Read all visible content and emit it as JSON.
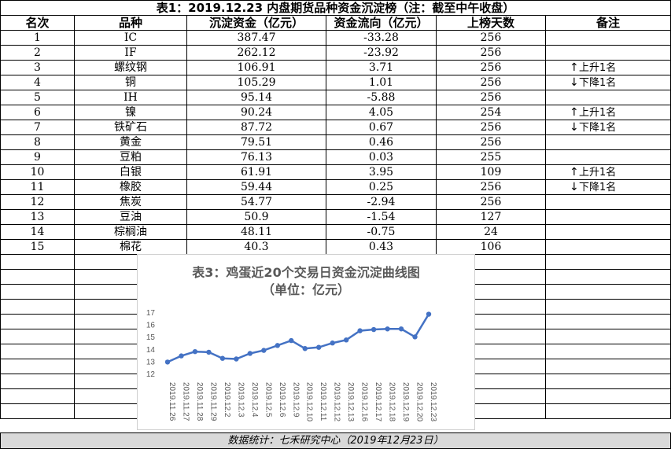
{
  "title": "表1：2019.12.23 内盘期货品种资金沉淀榜（注：截至中午收盘）",
  "headers": [
    "名次",
    "品种",
    "沉淀资金（亿元）",
    "资金流向（亿元）",
    "上榜天数",
    "备注"
  ],
  "rows": [
    {
      "rank": "1",
      "name": "IC",
      "fund": "387.47",
      "flow": "-33.28",
      "days": "256",
      "arrow": "",
      "note": ""
    },
    {
      "rank": "2",
      "name": "IF",
      "fund": "262.12",
      "flow": "-23.92",
      "days": "256",
      "arrow": "",
      "note": ""
    },
    {
      "rank": "3",
      "name": "螺纹钢",
      "fund": "106.91",
      "flow": "3.71",
      "days": "256",
      "arrow": "↑",
      "note": "上升1名"
    },
    {
      "rank": "4",
      "name": "铜",
      "fund": "105.29",
      "flow": "1.01",
      "days": "256",
      "arrow": "↓",
      "note": "下降1名"
    },
    {
      "rank": "5",
      "name": "IH",
      "fund": "95.14",
      "flow": "-5.88",
      "days": "256",
      "arrow": "",
      "note": ""
    },
    {
      "rank": "6",
      "name": "镍",
      "fund": "90.24",
      "flow": "4.05",
      "days": "254",
      "arrow": "↑",
      "note": "上升1名"
    },
    {
      "rank": "7",
      "name": "铁矿石",
      "fund": "87.72",
      "flow": "0.67",
      "days": "256",
      "arrow": "↓",
      "note": "下降1名"
    },
    {
      "rank": "8",
      "name": "黄金",
      "fund": "79.51",
      "flow": "0.46",
      "days": "256",
      "arrow": "",
      "note": ""
    },
    {
      "rank": "9",
      "name": "豆粕",
      "fund": "76.13",
      "flow": "0.03",
      "days": "255",
      "arrow": "",
      "note": ""
    },
    {
      "rank": "10",
      "name": "白银",
      "fund": "61.91",
      "flow": "3.95",
      "days": "109",
      "arrow": "↑",
      "note": "上升1名"
    },
    {
      "rank": "11",
      "name": "橡胶",
      "fund": "59.44",
      "flow": "0.25",
      "days": "256",
      "arrow": "↓",
      "note": "下降1名"
    },
    {
      "rank": "12",
      "name": "焦炭",
      "fund": "54.77",
      "flow": "-2.94",
      "days": "256",
      "arrow": "",
      "note": ""
    },
    {
      "rank": "13",
      "name": "豆油",
      "fund": "50.9",
      "flow": "-1.54",
      "days": "127",
      "arrow": "",
      "note": ""
    },
    {
      "rank": "14",
      "name": "棕榈油",
      "fund": "48.11",
      "flow": "-0.75",
      "days": "24",
      "arrow": "",
      "note": ""
    },
    {
      "rank": "15",
      "name": "棉花",
      "fund": "40.3",
      "flow": "0.43",
      "days": "106",
      "arrow": "",
      "note": ""
    }
  ],
  "footer": "数据统计：七禾研究中心（2019年12月23日）",
  "chart_data": {
    "type": "line",
    "title": "表3：鸡蛋近20个交易日资金沉淀曲线图",
    "subtitle": "（单位：亿元）",
    "categories": [
      "2019.11.26",
      "2019.11.27",
      "2019.11.28",
      "2019.11.29",
      "2019.12.2",
      "2019.12.3",
      "2019.12.4",
      "2019.12.5",
      "2019.12.6",
      "2019.12.9",
      "2019.12.10",
      "2019.12.11",
      "2019.12.12",
      "2019.12.13",
      "2019.12.16",
      "2019.12.17",
      "2019.12.18",
      "2019.12.19",
      "2019.12.20",
      "2019.12.23"
    ],
    "values": [
      13.0,
      13.5,
      13.85,
      13.8,
      13.3,
      13.25,
      13.7,
      13.95,
      14.35,
      14.75,
      14.1,
      14.2,
      14.55,
      14.8,
      15.55,
      15.65,
      15.7,
      15.7,
      15.05,
      16.9
    ],
    "ylim": [
      12,
      17
    ],
    "yticks": [
      12,
      13,
      14,
      15,
      16,
      17
    ],
    "color": "#4472c4",
    "grid": false,
    "legend": "none"
  }
}
